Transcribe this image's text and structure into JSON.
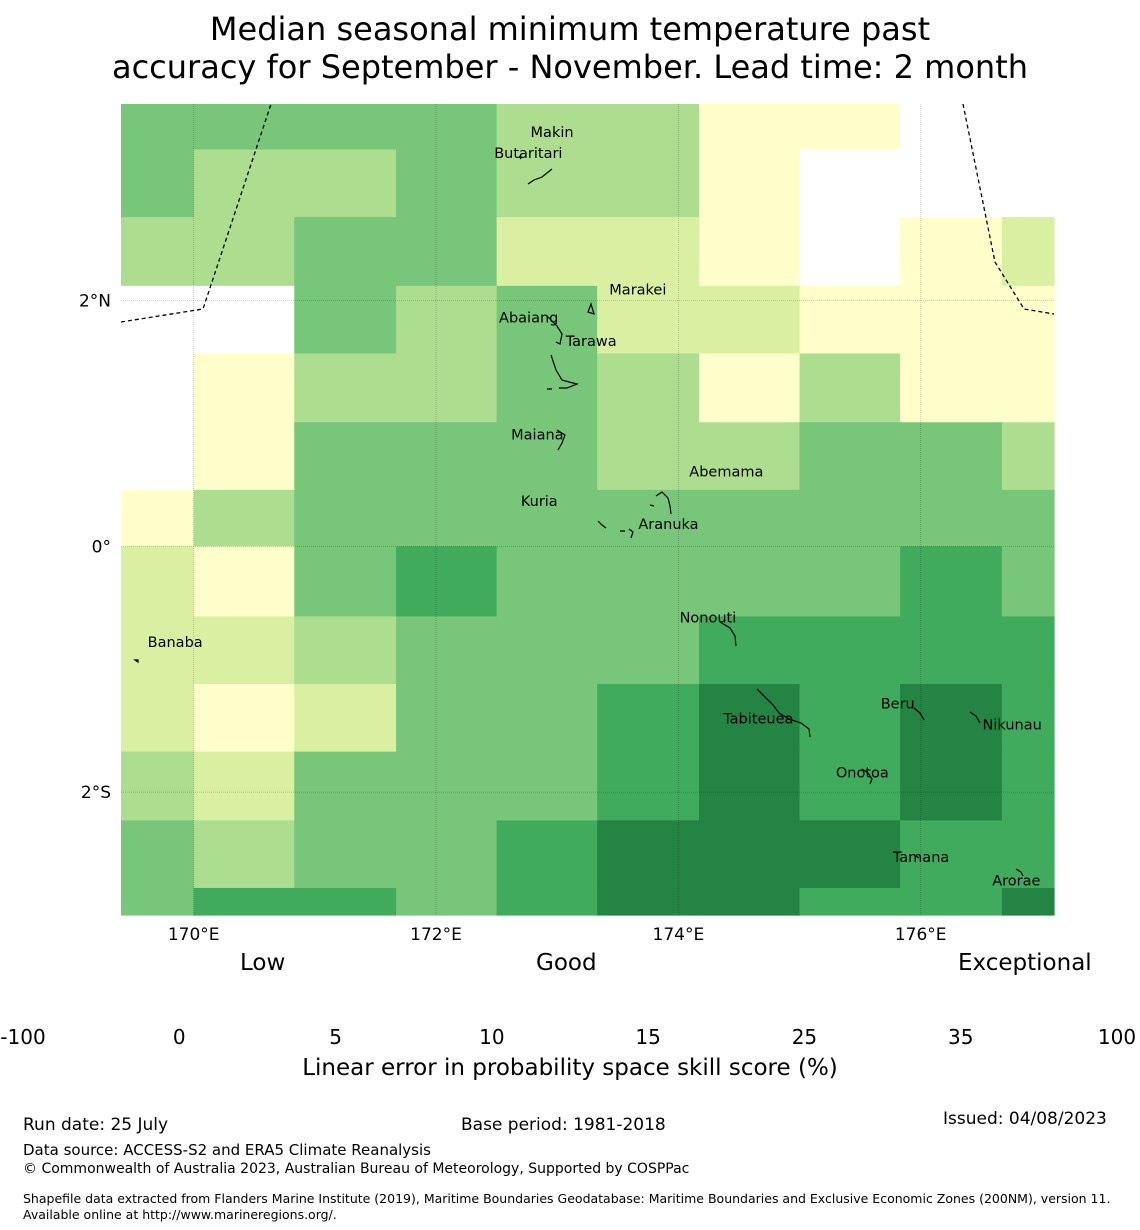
{
  "title": {
    "line1": "Median seasonal minimum temperature past",
    "line2": "accuracy for September - November. Lead time: 2 month"
  },
  "map": {
    "lon_range": [
      169.4,
      177.1
    ],
    "lat_range": [
      -3.0,
      3.6
    ],
    "x_ticks": [
      {
        "value": 170,
        "label": "170°E"
      },
      {
        "value": 172,
        "label": "172°E"
      },
      {
        "value": 174,
        "label": "174°E"
      },
      {
        "value": 176,
        "label": "176°E"
      }
    ],
    "y_ticks": [
      {
        "value": 2,
        "label": "2°N"
      },
      {
        "value": 0,
        "label": "0°"
      },
      {
        "value": -2,
        "label": "2°S"
      }
    ],
    "grid_note": "rows top-to-bottom, columns left-to-right; value = colour class index 0..6 (0:-100..0, 1:0..5, 2:5..10, 3:10..15, 4:15..25, 5:25..35, 6:35..100)",
    "cell_columns": [
      169.4,
      170.0,
      170.83,
      171.67,
      172.5,
      173.33,
      174.17,
      175.0,
      175.83,
      176.67,
      177.1
    ],
    "cell_rows": [
      3.6,
      3.23,
      2.68,
      2.12,
      1.57,
      1.01,
      0.46,
      0.0,
      -0.57,
      -1.12,
      -1.67,
      -2.23,
      -2.78,
      -3.0
    ],
    "grid": [
      [
        4,
        4,
        4,
        4,
        3,
        3,
        1,
        1,
        0,
        0
      ],
      [
        4,
        3,
        3,
        4,
        3,
        3,
        1,
        0,
        0,
        0
      ],
      [
        3,
        3,
        4,
        4,
        2,
        2,
        1,
        0,
        1,
        2
      ],
      [
        0,
        0,
        4,
        3,
        4,
        2,
        2,
        1,
        1,
        1
      ],
      [
        0,
        1,
        3,
        3,
        4,
        3,
        1,
        3,
        1,
        1
      ],
      [
        0,
        1,
        4,
        4,
        4,
        3,
        3,
        4,
        4,
        3
      ],
      [
        1,
        3,
        4,
        4,
        4,
        4,
        4,
        4,
        4,
        4
      ],
      [
        2,
        1,
        4,
        5,
        4,
        4,
        4,
        4,
        5,
        4
      ],
      [
        2,
        2,
        3,
        4,
        4,
        4,
        5,
        5,
        5,
        5
      ],
      [
        2,
        1,
        2,
        4,
        4,
        5,
        6,
        5,
        6,
        5
      ],
      [
        3,
        2,
        4,
        4,
        4,
        5,
        6,
        5,
        6,
        5
      ],
      [
        4,
        3,
        4,
        4,
        5,
        6,
        6,
        6,
        5,
        5
      ],
      [
        4,
        5,
        5,
        4,
        5,
        6,
        6,
        5,
        5,
        6
      ]
    ],
    "places": [
      {
        "name": "Makin",
        "lon": 172.78,
        "lat": 3.33
      },
      {
        "name": "Butaritari",
        "lon": 172.48,
        "lat": 3.16
      },
      {
        "name": "Marakei",
        "lon": 173.43,
        "lat": 2.05
      },
      {
        "name": "Abaiang",
        "lon": 172.52,
        "lat": 1.82
      },
      {
        "name": "Tarawa",
        "lon": 173.07,
        "lat": 1.63
      },
      {
        "name": "Maiana",
        "lon": 172.62,
        "lat": 0.87
      },
      {
        "name": "Abemama",
        "lon": 174.09,
        "lat": 0.57
      },
      {
        "name": "Kuria",
        "lon": 172.7,
        "lat": 0.33
      },
      {
        "name": "Aranuka",
        "lon": 173.67,
        "lat": 0.14
      },
      {
        "name": "Nonouti",
        "lon": 174.01,
        "lat": -0.62
      },
      {
        "name": "Banaba",
        "lon": 169.62,
        "lat": -0.82
      },
      {
        "name": "Beru",
        "lon": 175.67,
        "lat": -1.32
      },
      {
        "name": "Tabiteuea",
        "lon": 174.37,
        "lat": -1.44
      },
      {
        "name": "Nikunau",
        "lon": 176.51,
        "lat": -1.49
      },
      {
        "name": "Onotoa",
        "lon": 175.3,
        "lat": -1.88
      },
      {
        "name": "Tamana",
        "lon": 175.77,
        "lat": -2.57
      },
      {
        "name": "Arorae",
        "lon": 176.59,
        "lat": -2.76
      }
    ]
  },
  "colorbar": {
    "category_labels": {
      "low": "Low",
      "good": "Good",
      "exceptional": "Exceptional"
    },
    "colors": [
      "#ffffff",
      "#ffffcc",
      "#d9f0a3",
      "#addd8e",
      "#78c679",
      "#41ab5d",
      "#238443"
    ],
    "ticks": [
      "-100",
      "0",
      "5",
      "10",
      "15",
      "25",
      "35",
      "100"
    ],
    "title": "Linear error in probability space skill score (%)"
  },
  "footer": {
    "run_date": "Run date: 25 July",
    "base_period": "Base period: 1981-2018",
    "issued": "Issued: 04/08/2023",
    "data_source": "Data source: ACCESS-S2 and ERA5 Climate Reanalysis",
    "copyright": "© Commonwealth of Australia 2023, Australian Bureau of Meteorology, Supported by COSPPac",
    "shapefile": "Shapefile data extracted from Flanders Marine Institute (2019), Maritime Boundaries Geodatabase: Maritime Boundaries and Exclusive Economic Zones (200NM), version 11. Available online at http://www.marineregions.org/."
  }
}
